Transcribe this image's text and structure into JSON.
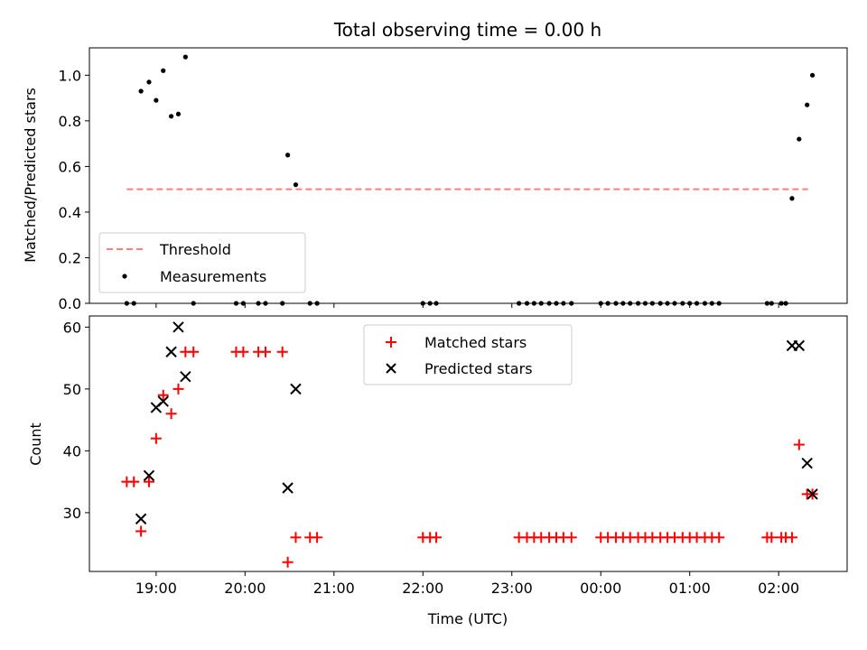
{
  "chart_data": [
    {
      "type": "scatter",
      "title": "Total observing time = 0.00 h",
      "ylabel": "Matched/Predicted stars",
      "xlabel": "",
      "ylim": [
        0,
        1.12
      ],
      "yticks": [
        "0.0",
        "0.2",
        "0.4",
        "0.6",
        "0.8",
        "1.0"
      ],
      "ytick_values": [
        0,
        0.2,
        0.4,
        0.6,
        0.8,
        1.0
      ],
      "xlim": [
        18.25,
        26.77
      ],
      "xtick_values": [
        19,
        20,
        21,
        22,
        23,
        24,
        25,
        26
      ],
      "legend_position": "lower-left",
      "threshold": {
        "name": "Threshold",
        "value": 0.5,
        "x": [
          18.67,
          26.33
        ],
        "color": "#ff7f7f"
      },
      "series": [
        {
          "name": "Measurements",
          "color": "#000000",
          "x": [
            18.67,
            18.75,
            18.83,
            18.92,
            19.0,
            19.08,
            19.17,
            19.25,
            19.33,
            19.42,
            19.9,
            19.98,
            20.15,
            20.23,
            20.42,
            20.48,
            20.57,
            20.73,
            20.81,
            22.0,
            22.08,
            22.15,
            23.08,
            23.17,
            23.25,
            23.33,
            23.42,
            23.5,
            23.58,
            23.67,
            24.0,
            24.08,
            24.17,
            24.25,
            24.33,
            24.42,
            24.5,
            24.58,
            24.67,
            24.75,
            24.83,
            24.92,
            25.0,
            25.08,
            25.17,
            25.25,
            25.33,
            25.87,
            25.92,
            26.03,
            26.08,
            26.15,
            26.23,
            26.32,
            26.38
          ],
          "y": [
            0,
            0,
            0.93,
            0.97,
            0.89,
            1.02,
            0.82,
            0.83,
            1.08,
            0,
            0,
            0,
            0,
            0,
            0,
            0.65,
            0.52,
            0,
            0,
            0,
            0,
            0,
            0,
            0,
            0,
            0,
            0,
            0,
            0,
            0,
            0,
            0,
            0,
            0,
            0,
            0,
            0,
            0,
            0,
            0,
            0,
            0,
            0,
            0,
            0,
            0,
            0,
            0,
            0,
            0,
            0,
            0.46,
            0.72,
            0.87,
            1.0
          ]
        }
      ]
    },
    {
      "type": "scatter",
      "title": "",
      "ylabel": "Count",
      "xlabel": "Time (UTC)",
      "ylim": [
        20.5,
        61.8
      ],
      "yticks": [
        "30",
        "40",
        "50",
        "60"
      ],
      "ytick_values": [
        30,
        40,
        50,
        60
      ],
      "xlim": [
        18.25,
        26.77
      ],
      "xtick_values": [
        19,
        20,
        21,
        22,
        23,
        24,
        25,
        26
      ],
      "xticks": [
        "19:00",
        "20:00",
        "21:00",
        "22:00",
        "23:00",
        "00:00",
        "01:00",
        "02:00"
      ],
      "legend_position": "upper-center",
      "series": [
        {
          "name": "Matched stars",
          "color": "#ff0000",
          "marker": "plus",
          "x": [
            18.67,
            18.75,
            18.83,
            18.92,
            19.0,
            19.08,
            19.17,
            19.25,
            19.33,
            19.42,
            19.9,
            19.98,
            20.15,
            20.23,
            20.42,
            20.48,
            20.57,
            20.73,
            20.81,
            22.0,
            22.08,
            22.15,
            23.08,
            23.17,
            23.25,
            23.33,
            23.42,
            23.5,
            23.58,
            23.67,
            24.0,
            24.08,
            24.17,
            24.25,
            24.33,
            24.42,
            24.5,
            24.58,
            24.67,
            24.75,
            24.83,
            24.92,
            25.0,
            25.08,
            25.17,
            25.25,
            25.33,
            25.87,
            25.92,
            26.03,
            26.08,
            26.15,
            26.23,
            26.32,
            26.38
          ],
          "y": [
            35,
            35,
            27,
            35,
            42,
            49,
            46,
            50,
            56,
            56,
            56,
            56,
            56,
            56,
            56,
            22,
            26,
            26,
            26,
            26,
            26,
            26,
            26,
            26,
            26,
            26,
            26,
            26,
            26,
            26,
            26,
            26,
            26,
            26,
            26,
            26,
            26,
            26,
            26,
            26,
            26,
            26,
            26,
            26,
            26,
            26,
            26,
            26,
            26,
            26,
            26,
            26,
            41,
            33,
            33
          ]
        },
        {
          "name": "Predicted stars",
          "color": "#000000",
          "marker": "x",
          "x": [
            18.83,
            18.92,
            19.0,
            19.08,
            19.17,
            19.25,
            19.33,
            20.48,
            20.57,
            26.15,
            26.23,
            26.32,
            26.38
          ],
          "y": [
            29,
            36,
            47,
            48,
            56,
            60,
            52,
            34,
            50,
            57,
            57,
            38,
            33
          ]
        }
      ]
    }
  ]
}
